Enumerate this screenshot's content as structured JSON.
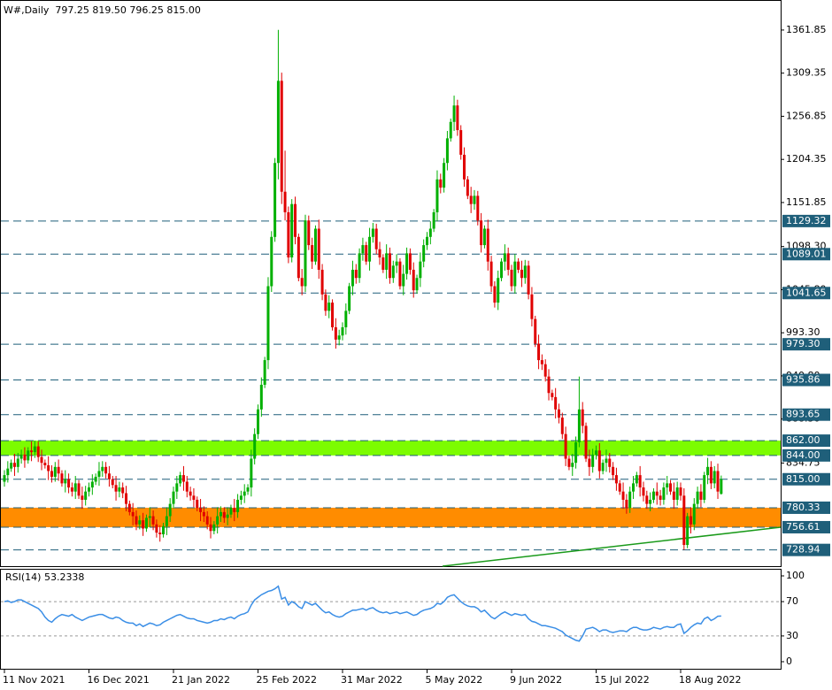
{
  "chart_data": {
    "type": "candlestick",
    "title": "W#,Daily  797.25 819.50 796.25 815.00",
    "categories": [
      "11 Nov 2021",
      null,
      null,
      null,
      null,
      null,
      null,
      null,
      null,
      null,
      null,
      null,
      null,
      null,
      null,
      null,
      null,
      null,
      null,
      null,
      null,
      null,
      null,
      null,
      null,
      "16 Dec 2021",
      null,
      null,
      null,
      null,
      null,
      null,
      null,
      null,
      null,
      null,
      null,
      null,
      null,
      null,
      null,
      null,
      null,
      null,
      null,
      null,
      null,
      null,
      null,
      null,
      "21 Jan 2022",
      null,
      null,
      null,
      null,
      null,
      null,
      null,
      null,
      null,
      null,
      null,
      null,
      null,
      null,
      null,
      null,
      null,
      null,
      null,
      null,
      null,
      null,
      null,
      null,
      "25 Feb 2022",
      null,
      null,
      null,
      null,
      null,
      null,
      null,
      null,
      null,
      null,
      null,
      null,
      null,
      null,
      null,
      null,
      null,
      null,
      null,
      null,
      null,
      null,
      null,
      null,
      "31 Mar 2022",
      null,
      null,
      null,
      null,
      null,
      null,
      null,
      null,
      null,
      null,
      null,
      null,
      null,
      null,
      null,
      null,
      null,
      null,
      null,
      null,
      null,
      null,
      null,
      null,
      "5 May 2022",
      null,
      null,
      null,
      null,
      null,
      null,
      null,
      null,
      null,
      null,
      null,
      null,
      null,
      null,
      null,
      null,
      null,
      null,
      null,
      null,
      null,
      null,
      null,
      null,
      "9 Jun 2022",
      null,
      null,
      null,
      null,
      null,
      null,
      null,
      null,
      null,
      null,
      null,
      null,
      null,
      null,
      null,
      null,
      null,
      null,
      null,
      null,
      null,
      null,
      null,
      null,
      "15 Jul 2022",
      null,
      null,
      null,
      null,
      null,
      null,
      null,
      null,
      null,
      null,
      null,
      null,
      null,
      null,
      null,
      null,
      null,
      null,
      null,
      null,
      null,
      null,
      null,
      null,
      "18 Aug 2022",
      null,
      null,
      null,
      null,
      null,
      null,
      null,
      null,
      null,
      null,
      null,
      null
    ],
    "open": [
      812,
      820,
      828,
      835,
      830,
      840,
      845,
      838,
      850,
      848,
      855,
      842,
      835,
      832,
      825,
      818,
      830,
      822,
      810,
      815,
      805,
      800,
      810,
      795,
      790,
      800,
      805,
      812,
      818,
      825,
      830,
      822,
      815,
      808,
      800,
      805,
      798,
      785,
      775,
      770,
      760,
      765,
      755,
      768,
      770,
      760,
      750,
      748,
      758,
      770,
      785,
      800,
      810,
      820,
      812,
      800,
      795,
      790,
      780,
      775,
      770,
      760,
      752,
      760,
      770,
      775,
      768,
      772,
      780,
      775,
      790,
      795,
      800,
      805,
      840,
      870,
      900,
      930,
      960,
      1050,
      1110,
      1200,
      1300,
      1165,
      1140,
      1085,
      1150,
      1110,
      1060,
      1050,
      1130,
      1100,
      1080,
      1120,
      1070,
      1040,
      1020,
      1030,
      1000,
      985,
      990,
      1000,
      1020,
      1050,
      1070,
      1060,
      1090,
      1100,
      1080,
      1110,
      1120,
      1095,
      1085,
      1070,
      1090,
      1060,
      1075,
      1080,
      1050,
      1065,
      1090,
      1070,
      1045,
      1060,
      1080,
      1100,
      1110,
      1120,
      1140,
      1180,
      1170,
      1200,
      1230,
      1250,
      1270,
      1240,
      1210,
      1180,
      1160,
      1150,
      1160,
      1130,
      1100,
      1120,
      1080,
      1050,
      1030,
      1060,
      1080,
      1090,
      1070,
      1050,
      1080,
      1070,
      1060,
      1075,
      1040,
      1010,
      980,
      960,
      955,
      940,
      920,
      915,
      900,
      890,
      870,
      840,
      830,
      835,
      860,
      900,
      880,
      840,
      830,
      845,
      850,
      825,
      835,
      840,
      830,
      820,
      810,
      800,
      790,
      780,
      800,
      810,
      820,
      805,
      795,
      785,
      790,
      800,
      795,
      790,
      805,
      810,
      800,
      790,
      805,
      795,
      735,
      770,
      760,
      785,
      800,
      790,
      820,
      830,
      810,
      825,
      797.25
    ],
    "high": [
      826,
      837,
      839,
      846,
      847,
      851,
      854,
      854,
      861,
      862,
      861,
      851,
      839,
      843,
      832,
      836,
      839,
      826,
      826,
      822,
      811,
      819,
      814,
      806,
      807,
      811,
      821,
      822,
      836,
      837,
      836,
      831,
      819,
      819,
      812,
      811,
      807,
      789,
      786,
      777,
      771,
      774,
      772,
      781,
      777,
      766,
      759,
      762,
      781,
      792,
      806,
      819,
      824,
      831,
      819,
      806,
      804,
      794,
      791,
      782,
      776,
      769,
      764,
      781,
      782,
      781,
      781,
      784,
      791,
      797,
      801,
      809,
      809,
      851,
      877,
      906,
      939,
      964,
      1061,
      1117,
      1206,
      1362,
      1310,
      1215,
      1147,
      1156,
      1159,
      1114,
      1071,
      1137,
      1136,
      1109,
      1124,
      1131,
      1077,
      1046,
      1039,
      1034,
      1011,
      997,
      1006,
      1029,
      1054,
      1081,
      1077,
      1096,
      1109,
      1104,
      1121,
      1127,
      1126,
      1104,
      1089,
      1101,
      1097,
      1081,
      1089,
      1084,
      1076,
      1097,
      1096,
      1079,
      1064,
      1091,
      1107,
      1116,
      1129,
      1144,
      1191,
      1187,
      1206,
      1239,
      1254,
      1282,
      1277,
      1246,
      1219,
      1184,
      1171,
      1167,
      1166,
      1139,
      1124,
      1131,
      1087,
      1056,
      1069,
      1084,
      1101,
      1097,
      1076,
      1089,
      1084,
      1081,
      1082,
      1081,
      1049,
      1014,
      991,
      967,
      961,
      949,
      924,
      926,
      907,
      896,
      879,
      844,
      846,
      867,
      940,
      909,
      884,
      851,
      852,
      856,
      859,
      839,
      851,
      847,
      836,
      829,
      814,
      811,
      797,
      806,
      819,
      824,
      831,
      812,
      801,
      799,
      804,
      811,
      802,
      811,
      819,
      814,
      811,
      812,
      811,
      804,
      774,
      781,
      792,
      806,
      809,
      824,
      841,
      837,
      831,
      834,
      819.5
    ],
    "low": [
      806,
      811,
      824,
      819,
      823,
      834,
      829,
      834,
      837,
      841,
      836,
      826,
      828,
      814,
      811,
      812,
      813,
      806,
      799,
      798,
      794,
      791,
      791,
      779,
      783,
      794,
      796,
      808,
      807,
      818,
      816,
      806,
      804,
      789,
      793,
      792,
      776,
      771,
      759,
      753,
      754,
      746,
      751,
      757,
      753,
      744,
      739,
      744,
      747,
      763,
      779,
      791,
      806,
      801,
      793,
      789,
      781,
      776,
      764,
      763,
      754,
      743,
      748,
      749,
      763,
      762,
      759,
      768,
      764,
      768,
      784,
      786,
      796,
      794,
      833,
      864,
      891,
      926,
      949,
      1043,
      1104,
      1180,
      1150,
      1130,
      1078,
      1079,
      1101,
      1056,
      1039,
      1043,
      1094,
      1071,
      1076,
      1059,
      1033,
      1014,
      1011,
      996,
      974,
      978,
      984,
      991,
      1016,
      1039,
      1053,
      1054,
      1081,
      1076,
      1069,
      1103,
      1089,
      1076,
      1066,
      1059,
      1053,
      1054,
      1066,
      1046,
      1039,
      1058,
      1064,
      1036,
      1041,
      1049,
      1073,
      1094,
      1101,
      1116,
      1129,
      1163,
      1164,
      1191,
      1226,
      1239,
      1233,
      1204,
      1171,
      1156,
      1139,
      1143,
      1124,
      1091,
      1096,
      1069,
      1043,
      1024,
      1021,
      1056,
      1069,
      1063,
      1044,
      1041,
      1066,
      1049,
      1053,
      1034,
      1001,
      976,
      949,
      948,
      934,
      911,
      911,
      889,
      883,
      864,
      831,
      826,
      819,
      828,
      854,
      871,
      836,
      819,
      823,
      839,
      816,
      821,
      824,
      823,
      814,
      801,
      796,
      779,
      773,
      774,
      791,
      806,
      794,
      788,
      779,
      776,
      786,
      784,
      783,
      784,
      796,
      796,
      779,
      783,
      789,
      729,
      731,
      749,
      753,
      779,
      781,
      786,
      809,
      803,
      804,
      791,
      796.25
    ],
    "close": [
      820,
      828,
      835,
      830,
      840,
      845,
      838,
      850,
      848,
      855,
      842,
      835,
      832,
      825,
      818,
      830,
      822,
      810,
      815,
      805,
      800,
      810,
      795,
      790,
      800,
      805,
      812,
      818,
      825,
      830,
      822,
      815,
      808,
      800,
      805,
      798,
      785,
      775,
      770,
      760,
      765,
      755,
      768,
      770,
      760,
      750,
      748,
      758,
      770,
      785,
      800,
      810,
      820,
      812,
      800,
      795,
      790,
      780,
      775,
      770,
      760,
      752,
      760,
      770,
      775,
      768,
      772,
      780,
      775,
      790,
      795,
      800,
      805,
      840,
      870,
      900,
      930,
      960,
      1050,
      1110,
      1200,
      1300,
      1165,
      1140,
      1085,
      1150,
      1110,
      1060,
      1050,
      1130,
      1100,
      1080,
      1120,
      1070,
      1040,
      1020,
      1030,
      1000,
      985,
      990,
      1000,
      1020,
      1050,
      1070,
      1060,
      1090,
      1100,
      1080,
      1110,
      1120,
      1095,
      1085,
      1070,
      1090,
      1060,
      1075,
      1080,
      1050,
      1065,
      1090,
      1070,
      1045,
      1060,
      1080,
      1100,
      1110,
      1120,
      1140,
      1180,
      1170,
      1200,
      1230,
      1250,
      1270,
      1240,
      1210,
      1180,
      1160,
      1150,
      1160,
      1130,
      1100,
      1120,
      1080,
      1050,
      1030,
      1060,
      1080,
      1090,
      1070,
      1050,
      1080,
      1070,
      1060,
      1075,
      1040,
      1010,
      980,
      960,
      955,
      940,
      920,
      915,
      900,
      890,
      870,
      840,
      830,
      835,
      860,
      900,
      880,
      840,
      830,
      845,
      850,
      825,
      835,
      840,
      830,
      820,
      810,
      800,
      790,
      780,
      800,
      810,
      820,
      805,
      795,
      785,
      790,
      800,
      795,
      790,
      805,
      810,
      800,
      790,
      805,
      795,
      735,
      770,
      760,
      785,
      800,
      790,
      820,
      830,
      810,
      825,
      800,
      815
    ],
    "up_color": "#00b000",
    "down_color": "#e00000",
    "ylim": [
      709.2,
      1393
    ],
    "yticks": [
      1361.85,
      1309.35,
      1256.85,
      1204.35,
      1151.85,
      {
        "value": 1098.3,
        "label": "1098.30"
      },
      {
        "value": 1045.8,
        "label": "1045.80"
      },
      {
        "value": 993.3,
        "label": "993.30"
      },
      {
        "value": 940.8,
        "label": "940.80"
      },
      {
        "value": 888.3,
        "label": "888.30"
      },
      834.75
    ],
    "levels": [
      1129.32,
      1089.01,
      1041.65,
      {
        "value": 979.3,
        "label": "979.30"
      },
      935.86,
      893.65,
      {
        "value": 862,
        "label": "862.00"
      },
      {
        "value": 844,
        "label": "844.00"
      },
      {
        "value": 815,
        "label": "815.00"
      },
      780.33,
      756.61,
      728.94
    ],
    "level_color": "#1f5f7a",
    "zones": [
      {
        "from": 844,
        "to": 862,
        "color": "#7cfc00"
      },
      {
        "from": 756.61,
        "to": 780.33,
        "color": "#ff8c00"
      }
    ],
    "trendline": {
      "values": [
        709.2,
        756.6
      ],
      "color": "#1a9a1a"
    },
    "rsi": {
      "label": "RSI(14) 53.2338",
      "color": "#3a8ee6",
      "ylim": [
        0,
        100
      ],
      "yticks": [
        0,
        30,
        70,
        100
      ],
      "dashed_levels": [
        30,
        70
      ],
      "values": [
        70,
        71,
        69,
        70,
        72,
        72,
        70,
        68,
        66,
        64,
        62,
        58,
        52,
        48,
        46,
        50,
        53,
        55,
        54,
        53,
        55,
        52,
        50,
        48,
        50,
        52,
        53,
        54,
        55,
        55,
        53,
        51,
        50,
        52,
        51,
        48,
        46,
        45,
        45,
        42,
        44,
        41,
        43,
        45,
        44,
        42,
        43,
        46,
        48,
        50,
        52,
        54,
        55,
        53,
        51,
        50,
        50,
        48,
        47,
        46,
        45,
        46,
        48,
        48,
        50,
        49,
        51,
        52,
        50,
        53,
        55,
        56,
        58,
        66,
        72,
        75,
        78,
        80,
        82,
        83,
        85,
        88,
        73,
        75,
        66,
        70,
        68,
        64,
        62,
        70,
        68,
        66,
        68,
        64,
        60,
        57,
        58,
        55,
        53,
        52,
        53,
        56,
        58,
        60,
        60,
        61,
        62,
        60,
        62,
        63,
        60,
        58,
        57,
        58,
        56,
        57,
        58,
        56,
        57,
        58,
        56,
        54,
        55,
        58,
        60,
        61,
        62,
        64,
        68,
        67,
        70,
        75,
        77,
        78,
        74,
        70,
        67,
        65,
        64,
        64,
        62,
        58,
        60,
        56,
        52,
        50,
        53,
        56,
        58,
        56,
        54,
        56,
        55,
        54,
        55,
        50,
        47,
        46,
        44,
        42,
        42,
        41,
        40,
        39,
        37,
        35,
        31,
        29,
        27,
        25,
        24,
        30,
        38,
        39,
        40,
        38,
        35,
        37,
        37,
        35,
        34,
        35,
        36,
        36,
        35,
        38,
        40,
        40,
        38,
        37,
        37,
        38,
        40,
        39,
        38,
        40,
        41,
        40,
        40,
        43,
        44,
        33,
        36,
        40,
        43,
        45,
        44,
        50,
        52,
        48,
        50,
        53,
        53.2338
      ]
    }
  }
}
